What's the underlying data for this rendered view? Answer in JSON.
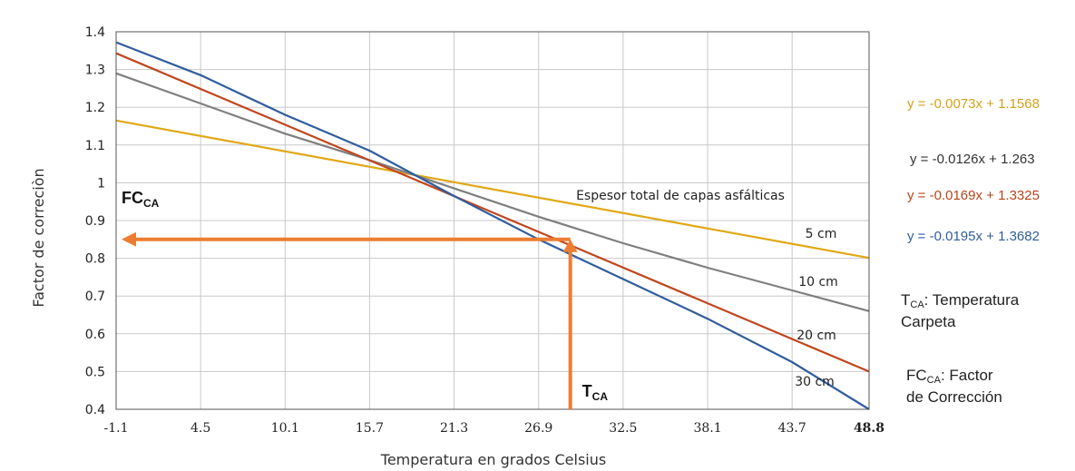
{
  "chart_data": {
    "type": "line",
    "xlabel": "Temperatura en grados Celsius",
    "ylabel": "Factor de correciòn",
    "x_ticks": [
      "-1.1",
      "4.5",
      "10.1",
      "15.7",
      "21.3",
      "26.9",
      "32.5",
      "38.1",
      "43.7",
      "48.8"
    ],
    "y_ticks": [
      "0.4",
      "0.5",
      "0.6",
      "0.7",
      "0.8",
      "0.9",
      "1",
      "1.1",
      "1.2",
      "1.3",
      "1.4"
    ],
    "xlim": [
      -1.1,
      48.8
    ],
    "ylim": [
      0.4,
      1.4
    ],
    "grid": true,
    "series": [
      {
        "name": "5 cm",
        "color": "#e0a816",
        "x": [
          -1.1,
          48.8
        ],
        "y": [
          1.165,
          0.801
        ]
      },
      {
        "name": "10 cm",
        "color": "#7f7f7f",
        "x": [
          -1.1,
          4.5,
          10.1,
          15.7,
          21.3,
          26.9,
          32.5,
          38.1,
          43.7,
          48.8
        ],
        "y": [
          1.29,
          1.21,
          1.13,
          1.06,
          0.985,
          0.91,
          0.84,
          0.775,
          0.715,
          0.66
        ]
      },
      {
        "name": "20 cm",
        "color": "#c0461e",
        "x": [
          -1.1,
          48.8
        ],
        "y": [
          1.343,
          0.5
        ]
      },
      {
        "name": "30 cm",
        "color": "#2f5d9e",
        "x": [
          -1.1,
          4.5,
          10.1,
          15.7,
          21.3,
          26.9,
          32.5,
          38.1,
          43.7,
          48.8
        ],
        "y": [
          1.372,
          1.285,
          1.18,
          1.085,
          0.965,
          0.85,
          0.745,
          0.64,
          0.525,
          0.4
        ]
      }
    ],
    "annotations": {
      "group_label": "Espesor total de capas asfálticas",
      "fc_label_main": "FC",
      "fc_label_sub": "CA",
      "tca_label_main": "T",
      "tca_label_sub": "CA",
      "arrow_x": 29.0,
      "arrow_y": 0.85,
      "arrow_color": "#ed7d31"
    }
  },
  "legend": {
    "equations": [
      {
        "text": "y = -0.0073x + 1.1568",
        "color": "#d4a017"
      },
      {
        "text": "y = -0.0126x + 1.263",
        "color": "#333333"
      },
      {
        "text": "y = -0.0169x + 1.3325",
        "color": "#b5451b"
      },
      {
        "text": "y = -0.0195x + 1.3682",
        "color": "#2f5d9e"
      }
    ]
  },
  "notes": {
    "tca": {
      "main": "T",
      "sub": "CA",
      "rest": ": Temperatura",
      "line2": "Carpeta"
    },
    "fca": {
      "main": "FC",
      "sub": "CA",
      "rest": ": Factor",
      "line2": "de Corrección"
    }
  }
}
